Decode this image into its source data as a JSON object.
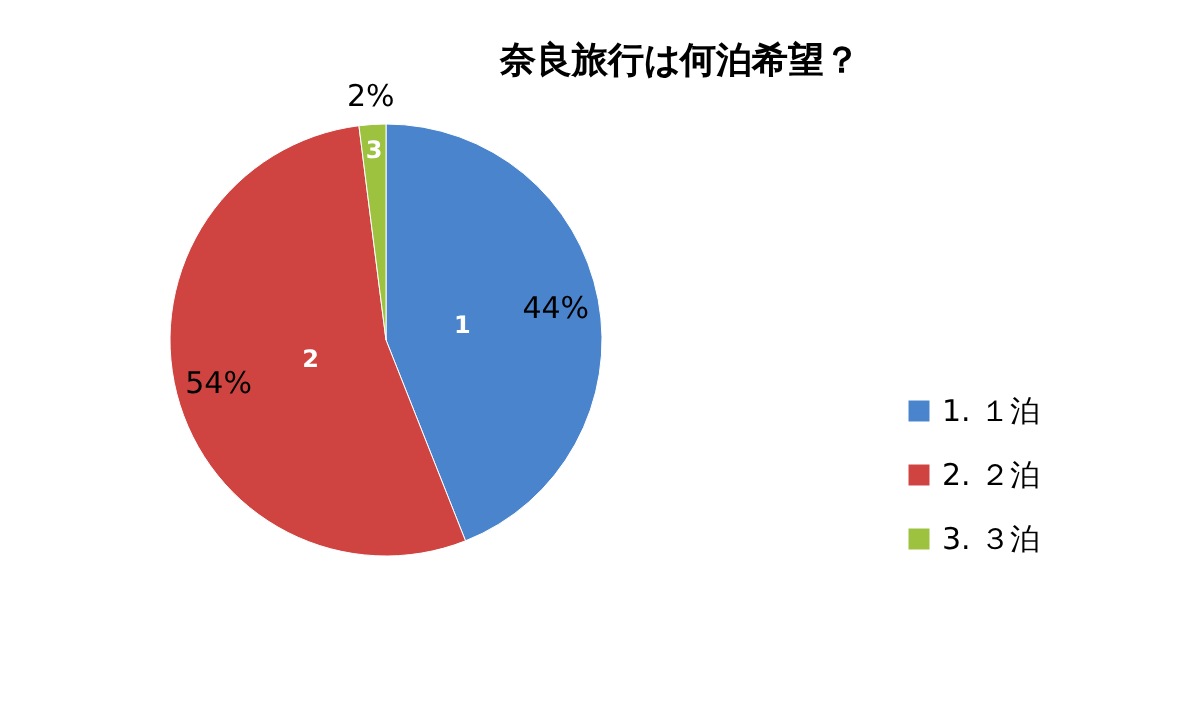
{
  "chart_data": {
    "type": "pie",
    "title": "奈良旅行は何泊希望？",
    "categories": [
      "1. １泊",
      "2. ２泊",
      "3. ３泊"
    ],
    "values": [
      44,
      54,
      2
    ],
    "colors": [
      "#4a84cc",
      "#cf4441",
      "#9cc23f"
    ],
    "value_labels": [
      "44%",
      "54%",
      "2%"
    ],
    "annotations": [
      "1",
      "2",
      "3"
    ],
    "legend": "right"
  }
}
